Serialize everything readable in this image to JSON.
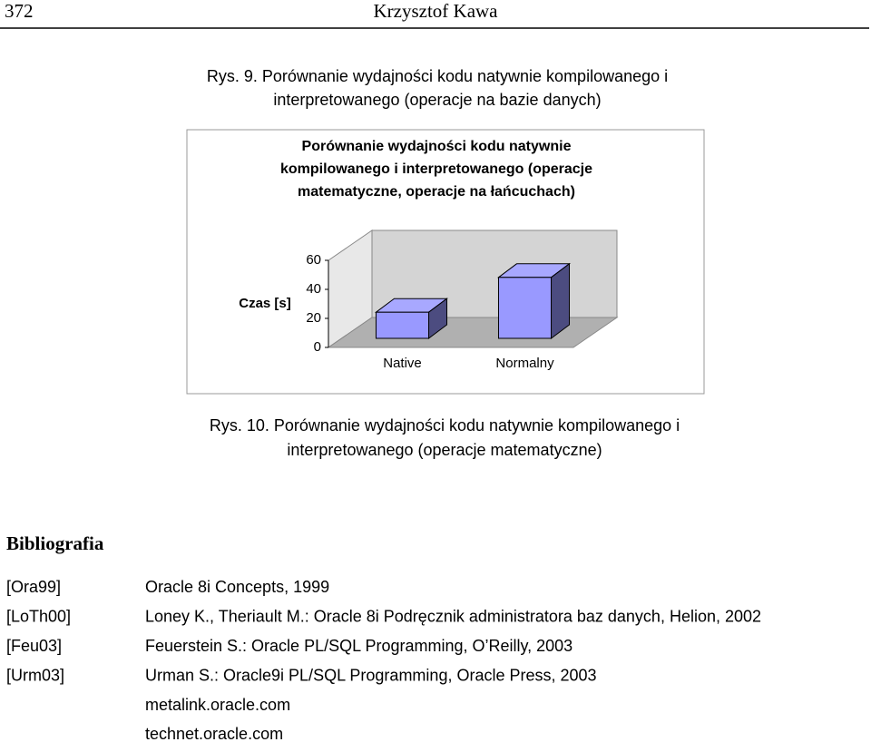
{
  "header": {
    "page_number": "372",
    "author": "Krzysztof Kawa"
  },
  "caption_1": [
    "Rys. 9. Porównanie wydajności kodu natywnie kompilowanego i",
    "interpretowanego (operacje na bazie danych)"
  ],
  "chart_data": {
    "type": "bar",
    "title": [
      "Porównanie wydajności kodu natywnie",
      "kompilowanego i  interpretowanego (operacje",
      "matematyczne, operacje na łańcuchach)"
    ],
    "y_label": "Czas [s]",
    "categories": [
      "Native",
      "Normalny"
    ],
    "values": [
      18,
      42
    ],
    "color": "#9999ff",
    "ylim": [
      0,
      60
    ],
    "yticks": [
      0,
      20,
      40,
      60
    ]
  },
  "caption_2": [
    "Rys. 10. Porównanie wydajności kodu natywnie kompilowanego i",
    "interpretowanego (operacje matematyczne)"
  ],
  "bibliography": {
    "title": "Bibliografia",
    "entries": [
      {
        "key": "[Ora99]",
        "text": "Oracle 8i Concepts, 1999"
      },
      {
        "key": "[LoTh00]",
        "text": "Loney K., Theriault M.: Oracle 8i Podręcznik administratora baz danych, Helion, 2002"
      },
      {
        "key": "[Feu03]",
        "text": "Feuerstein S.: Oracle PL/SQL Programming, O’Reilly, 2003"
      },
      {
        "key": "[Urm03]",
        "text": "Urman S.: Oracle9i PL/SQL Programming, Oracle Press, 2003"
      }
    ],
    "links": [
      "metalink.oracle.com",
      "technet.oracle.com"
    ]
  }
}
